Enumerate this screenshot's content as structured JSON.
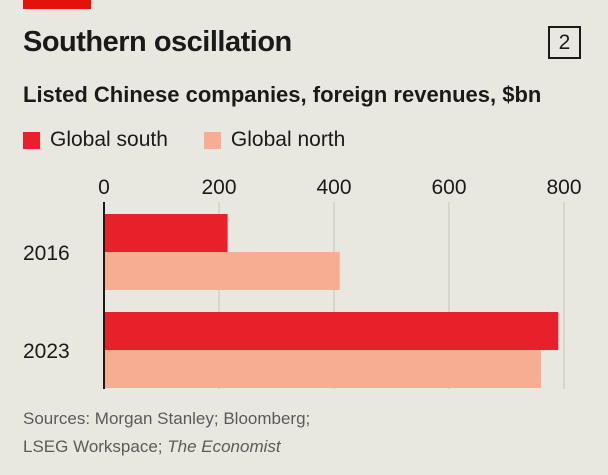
{
  "header": {
    "title": "Southern oscillation",
    "chart_number": "2",
    "subtitle": "Listed Chinese companies, foreign revenues, $bn"
  },
  "colors": {
    "background": "#e9e8e0",
    "brand_red": "#e3120b",
    "global_south": "#e8202a",
    "global_north": "#f7ad92",
    "grid": "#c4c3bb",
    "axis": "#1a1a1a"
  },
  "chart_data": {
    "type": "bar",
    "orientation": "horizontal",
    "title": "Southern oscillation",
    "subtitle": "Listed Chinese companies, foreign revenues, $bn",
    "categories": [
      "2016",
      "2023"
    ],
    "series": [
      {
        "name": "Global south",
        "values": [
          215,
          790
        ]
      },
      {
        "name": "Global north",
        "values": [
          410,
          760
        ]
      }
    ],
    "xlim": [
      0,
      800
    ],
    "xticks": [
      "0",
      "200",
      "400",
      "600",
      "800"
    ],
    "grid": true,
    "legend_position": "top-left"
  },
  "source": {
    "line1": "Sources: Morgan Stanley; Bloomberg;",
    "line2_prefix": "LSEG Workspace; ",
    "line2_italic": "The Economist"
  }
}
